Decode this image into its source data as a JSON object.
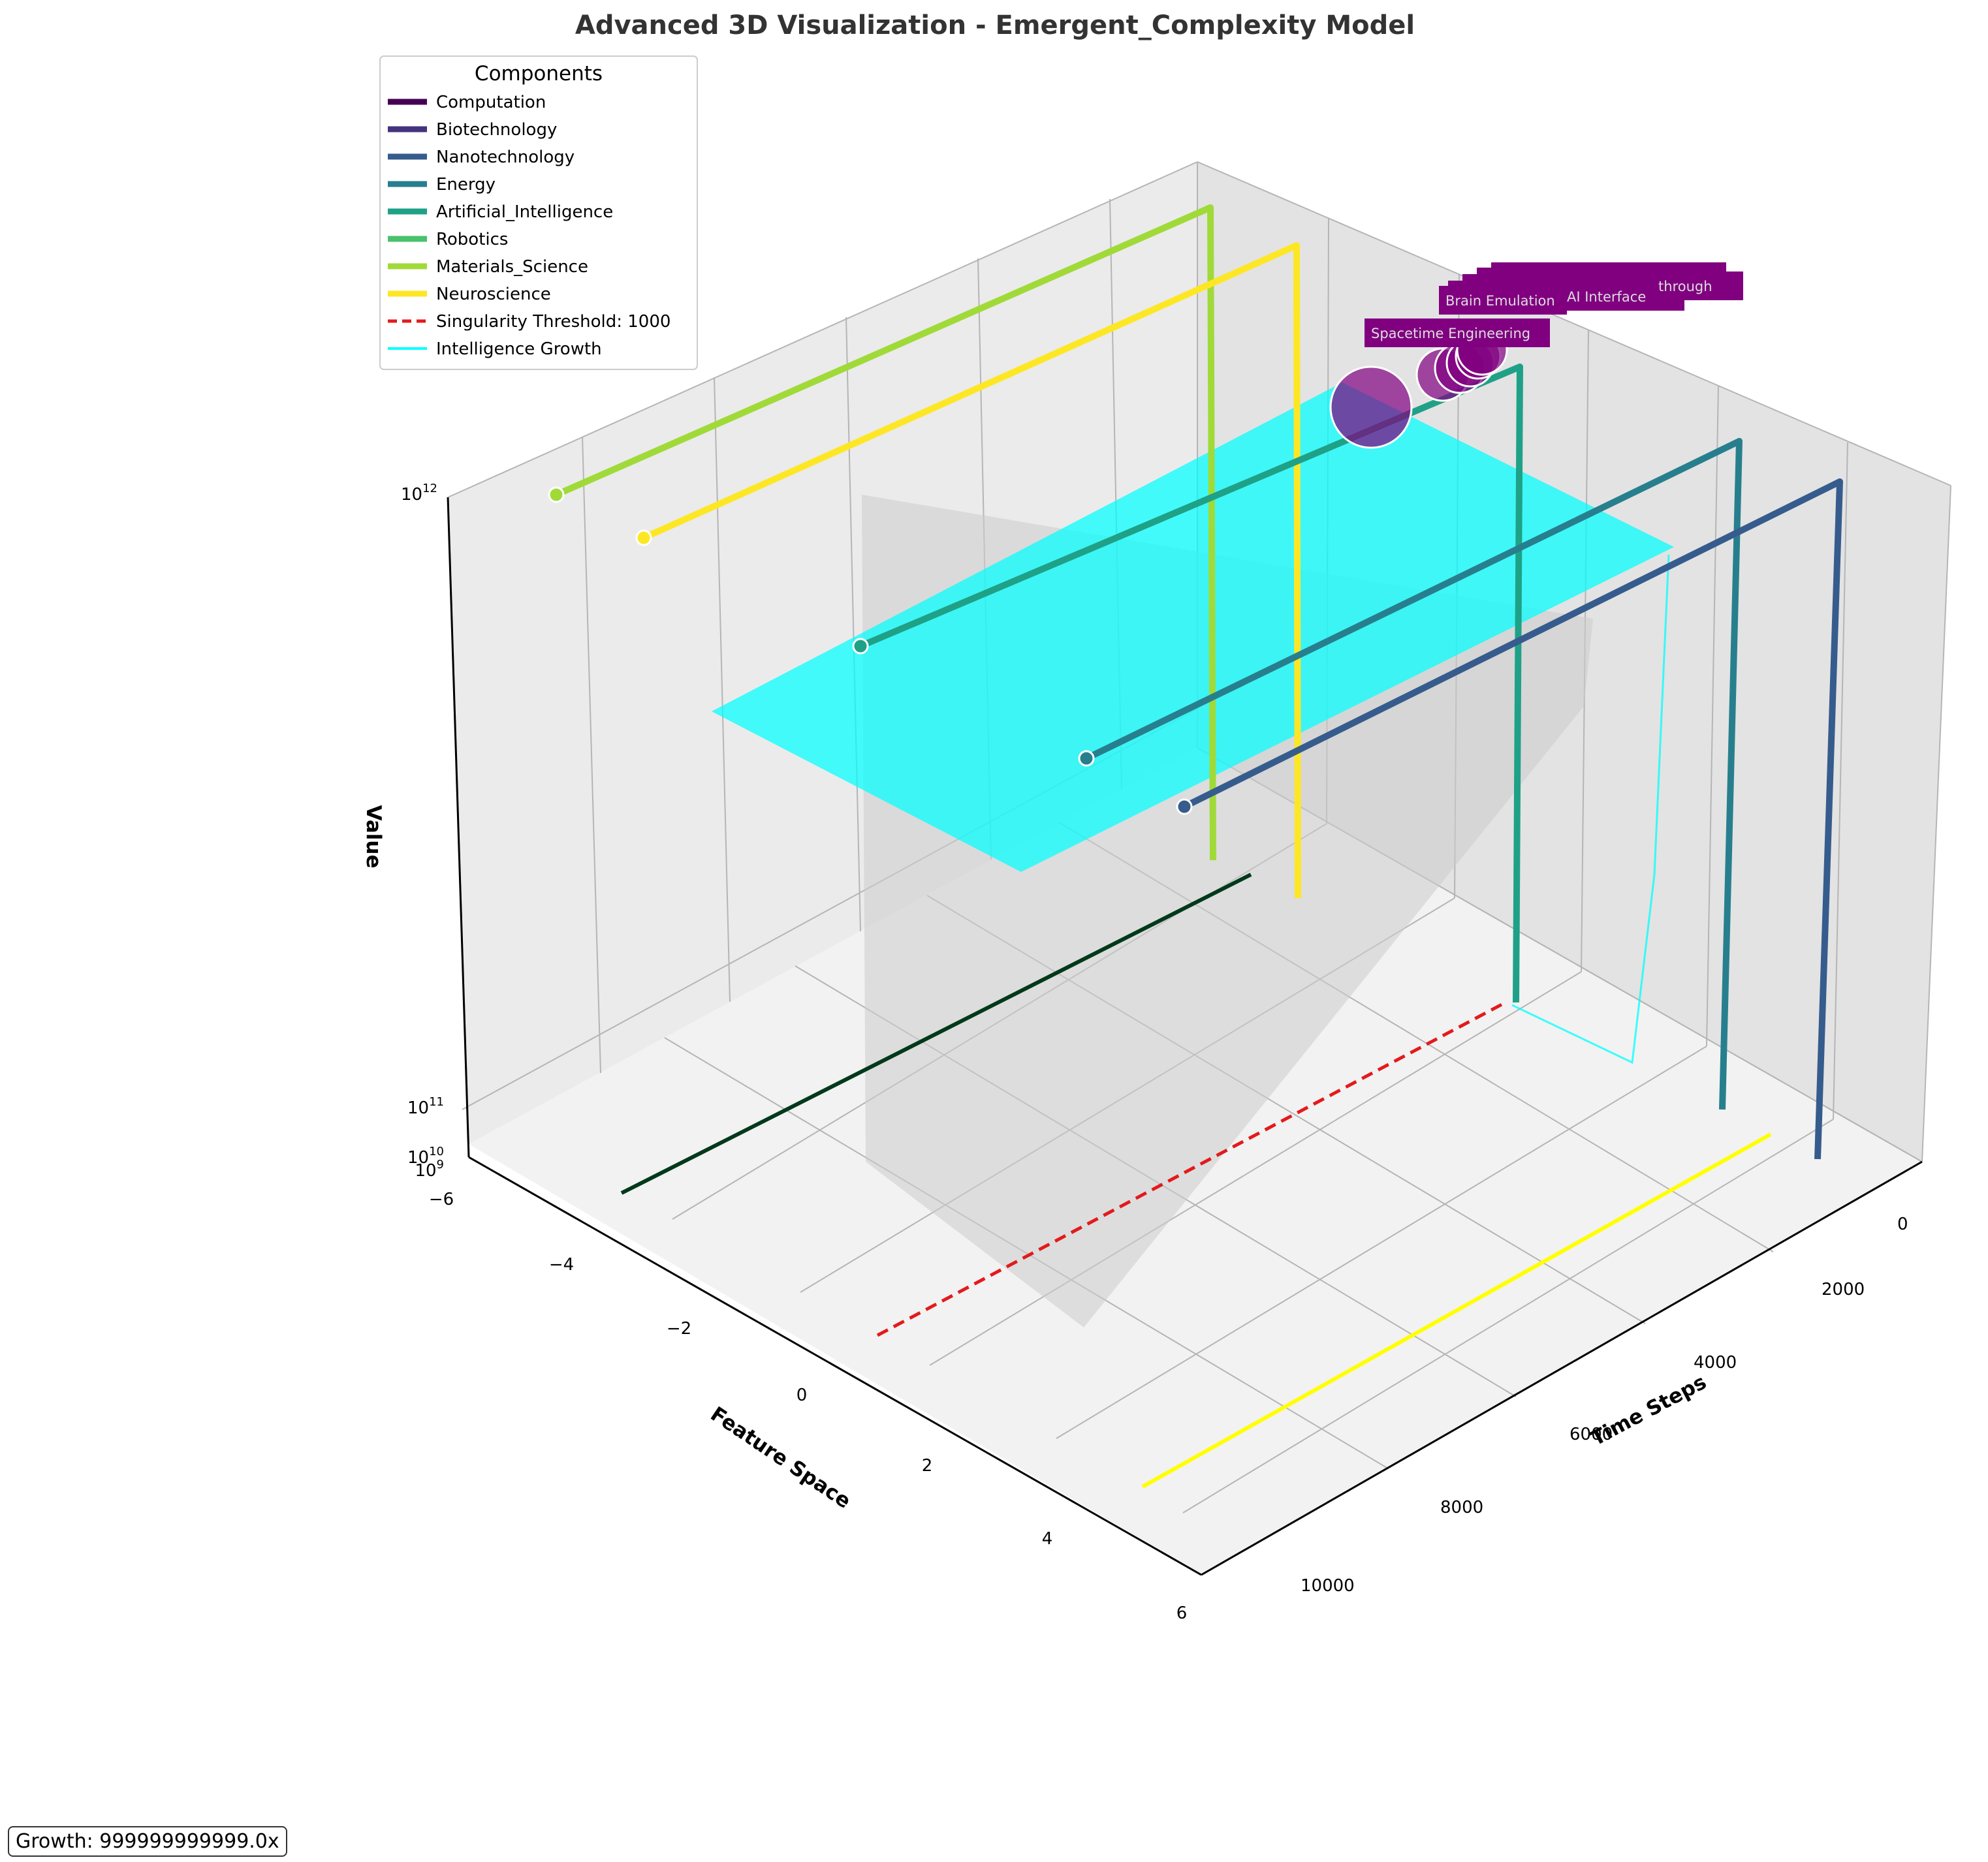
{
  "chart_data": {
    "type": "line",
    "title": "Advanced 3D Visualization - Emergent_Complexity Model",
    "xlabel": "Time Steps",
    "ylabel": "Feature Space",
    "zlabel": "Value",
    "x_ticks": [
      "0",
      "2000",
      "4000",
      "6000",
      "8000",
      "10000"
    ],
    "y_ticks": [
      "−6",
      "−4",
      "−2",
      "0",
      "2",
      "4",
      "6"
    ],
    "z_ticks": [
      "10^12",
      "10^11",
      "10^10",
      "10^9"
    ],
    "z_scale": "log",
    "legend_title": "Components",
    "legend_placement": "top-left",
    "series": [
      {
        "name": "Computation",
        "color": "#440154"
      },
      {
        "name": "Biotechnology",
        "color": "#46337e"
      },
      {
        "name": "Nanotechnology",
        "color": "#365c8d"
      },
      {
        "name": "Energy",
        "color": "#277f8e"
      },
      {
        "name": "Artificial_Intelligence",
        "color": "#1fa187"
      },
      {
        "name": "Robotics",
        "color": "#4ac16d"
      },
      {
        "name": "Materials_Science",
        "color": "#a0da39"
      },
      {
        "name": "Neuroscience",
        "color": "#fde725"
      }
    ],
    "threshold": {
      "label": "Singularity Threshold: 1000",
      "value": 1000,
      "color": "#e31a1c"
    },
    "intelligence": {
      "label": "Intelligence Growth",
      "color": "#00ffff"
    },
    "events": [
      {
        "label": "Spacetime Engineering"
      },
      {
        "label": "Brain Emulation"
      },
      {
        "label": "AI Interface"
      },
      {
        "label": "through"
      }
    ],
    "grid": true
  },
  "annotation": {
    "growth_text": "Growth: 999999999999.0x"
  }
}
